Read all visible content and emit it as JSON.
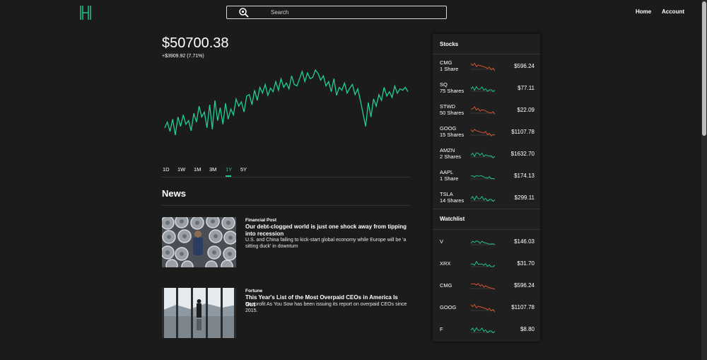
{
  "header": {
    "search_placeholder": "Search",
    "nav": [
      "Home",
      "Account"
    ]
  },
  "colors": {
    "accent": "#21ce99",
    "negative": "#e5582e",
    "background": "#1b1b1c",
    "panel": "#1f1f20"
  },
  "portfolio": {
    "value": "$50700.38",
    "change": "+$3909.92 (7.71%)",
    "ranges": [
      "1D",
      "1W",
      "1M",
      "3M",
      "1Y",
      "5Y"
    ],
    "active_range": "1Y"
  },
  "chart_data": {
    "type": "line",
    "title": "",
    "xlabel": "",
    "ylabel": "",
    "series": [
      {
        "values": [
          40,
          48,
          35,
          52,
          30,
          55,
          42,
          58,
          45,
          50,
          36,
          60,
          48,
          70,
          55,
          62,
          40,
          72,
          38,
          78,
          50,
          68,
          45,
          74,
          52,
          66,
          58,
          80,
          70,
          76,
          62,
          84,
          86,
          72,
          92,
          78,
          96,
          88,
          100,
          85,
          95,
          90,
          104,
          92,
          108,
          96,
          102,
          94,
          112,
          100,
          98,
          108,
          118,
          104,
          116,
          108,
          110,
          120,
          115,
          106,
          112,
          98,
          104,
          90,
          108,
          85,
          96,
          92,
          102,
          88,
          95,
          100,
          86,
          94,
          78,
          60,
          42,
          75,
          55,
          80,
          70,
          86,
          78,
          96,
          84,
          90,
          82,
          98,
          88,
          94,
          92,
          96,
          90
        ]
      }
    ]
  },
  "news": {
    "title": "News",
    "items": [
      {
        "source": "Financial Post",
        "headline": "Our debt-clogged world is just one shock away from tipping into recession",
        "description": "U.S. and China failing to kick-start global economy while Europe will be 'a sitting duck' in downturn",
        "image": "stacked-wheels-photo"
      },
      {
        "source": "Fortune",
        "headline": "This Year's List of the Most Overpaid CEOs in America Is Out",
        "description": "Nonprofit As You Sow has been issuing its report on overpaid CEOs since 2015.",
        "image": "office-window-photo"
      }
    ]
  },
  "stocks": {
    "title": "Stocks",
    "items": [
      {
        "ticker": "CMG",
        "shares": "1 Share",
        "price": "$596.24",
        "trend": "down"
      },
      {
        "ticker": "SQ",
        "shares": "75 Shares",
        "price": "$77.11",
        "trend": "up"
      },
      {
        "ticker": "STWD",
        "shares": "50 Shares",
        "price": "$22.09",
        "trend": "down"
      },
      {
        "ticker": "GOOG",
        "shares": "15 Shares",
        "price": "$1107.78",
        "trend": "down"
      },
      {
        "ticker": "AMZN",
        "shares": "2 Shares",
        "price": "$1632.70",
        "trend": "up"
      },
      {
        "ticker": "AAPL",
        "shares": "1 Share",
        "price": "$174.13",
        "trend": "up"
      },
      {
        "ticker": "TSLA",
        "shares": "14 Shares",
        "price": "$299.11",
        "trend": "up"
      }
    ]
  },
  "watchlist": {
    "title": "Watchlist",
    "items": [
      {
        "ticker": "V",
        "price": "$146.03",
        "trend": "up"
      },
      {
        "ticker": "XRX",
        "price": "$31.70",
        "trend": "up"
      },
      {
        "ticker": "CMG",
        "price": "$596.24",
        "trend": "down"
      },
      {
        "ticker": "GOOG",
        "price": "$1107.78",
        "trend": "down"
      },
      {
        "ticker": "F",
        "price": "$8.80",
        "trend": "up"
      }
    ]
  }
}
